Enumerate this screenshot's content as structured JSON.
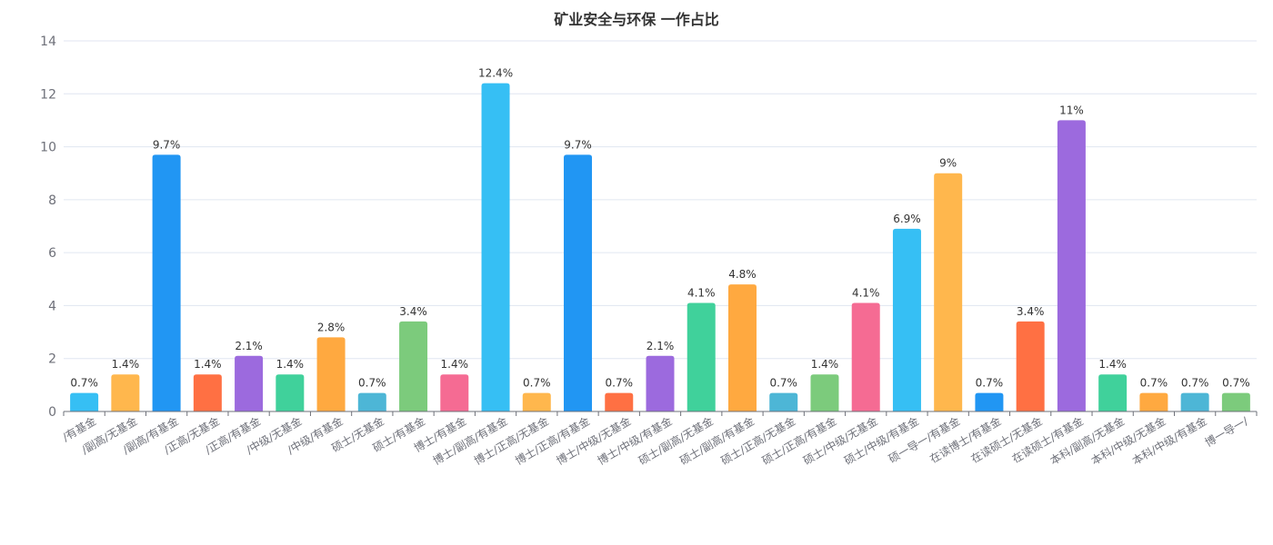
{
  "chart_data": {
    "type": "bar",
    "title": "矿业安全与环保 一作占比",
    "xlabel": "",
    "ylabel": "",
    "ylim": [
      0,
      14
    ],
    "yticks": [
      0,
      2,
      4,
      6,
      8,
      10,
      12,
      14
    ],
    "grid": true,
    "value_suffix": "%",
    "categories": [
      "/有基金",
      "/副高/无基金",
      "/副高/有基金",
      "/正高/无基金",
      "/正高/有基金",
      "/中级/无基金",
      "/中级/有基金",
      "硕士/无基金",
      "硕士/有基金",
      "博士/有基金",
      "博士/副高/有基金",
      "博士/正高/无基金",
      "博士/正高/有基金",
      "博士/中级/无基金",
      "博士/中级/有基金",
      "硕士/副高/无基金",
      "硕士/副高/有基金",
      "硕士/正高/无基金",
      "硕士/正高/有基金",
      "硕士/中级/无基金",
      "硕士/中级/有基金",
      "硕一导一/有基金",
      "在读博士/有基金",
      "在读硕士/无基金",
      "在读硕士/有基金",
      "本科/副高/无基金",
      "本科/中级/无基金",
      "本科/中级/有基金",
      "博一导一/"
    ],
    "values": [
      0.7,
      1.4,
      9.7,
      1.4,
      2.1,
      1.4,
      2.8,
      0.7,
      3.4,
      1.4,
      12.4,
      0.7,
      9.7,
      0.7,
      2.1,
      4.1,
      4.8,
      0.7,
      1.4,
      4.1,
      6.9,
      9,
      0.7,
      3.4,
      11,
      1.4,
      0.7,
      0.7,
      0.7
    ],
    "colors": [
      "#36bff4",
      "#ffb74d",
      "#2196f3",
      "#ff7043",
      "#9c6ade",
      "#40d19b",
      "#ffa940",
      "#4db6d6",
      "#7ccb7c",
      "#f56b93"
    ]
  }
}
